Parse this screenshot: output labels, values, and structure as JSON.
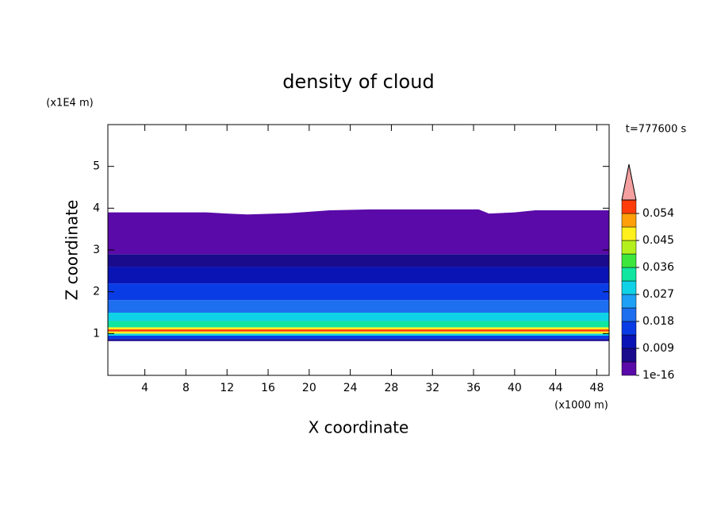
{
  "chart_data": {
    "type": "contour",
    "title": "density of cloud",
    "xlabel": "X coordinate",
    "ylabel": "Z coordinate",
    "x_unit": "(x1000 m)",
    "y_unit": "(x1E4 m)",
    "time_label": "t=777600 s",
    "xlim": [
      0.4,
      49.2
    ],
    "ylim": [
      0,
      6
    ],
    "xticks": [
      4,
      8,
      12,
      16,
      20,
      24,
      28,
      32,
      36,
      40,
      44,
      48
    ],
    "yticks": [
      1,
      2,
      3,
      4,
      5
    ],
    "z": [
      0.82,
      0.87,
      0.95,
      1.0,
      1.05,
      1.1,
      1.15,
      1.3,
      1.5,
      1.8,
      2.2,
      2.6,
      2.9
    ],
    "values": [
      0.005,
      0.014,
      0.03,
      0.048,
      0.056,
      0.046,
      0.033,
      0.027,
      0.019,
      0.015,
      0.01,
      0.006,
      0.002
    ],
    "top_x": [
      0.4,
      10,
      12,
      14,
      18,
      22,
      26,
      36.5,
      37.5,
      40,
      42,
      49.2
    ],
    "top_z": [
      3.9,
      3.9,
      3.87,
      3.85,
      3.88,
      3.95,
      3.97,
      3.97,
      3.87,
      3.9,
      3.95,
      3.95
    ],
    "levels": [
      1e-16,
      0.0045,
      0.009,
      0.0135,
      0.018,
      0.0225,
      0.027,
      0.0315,
      0.036,
      0.0405,
      0.045,
      0.0495,
      0.054,
      0.0585
    ],
    "colors": [
      "#5a0aa8",
      "#1a0a8c",
      "#0a14b4",
      "#0a3ce6",
      "#1e6ef0",
      "#1ea0f5",
      "#10d2e6",
      "#10e6a0",
      "#3ce63c",
      "#b4f01e",
      "#fff01e",
      "#ffa00a",
      "#ff3c0a"
    ],
    "overflow_color": "#f4a0a0",
    "colorbar_ticks": [
      {
        "value": 1e-16,
        "label": "1e-16"
      },
      0.009,
      0.018,
      0.027,
      0.036,
      0.045,
      0.054
    ]
  }
}
